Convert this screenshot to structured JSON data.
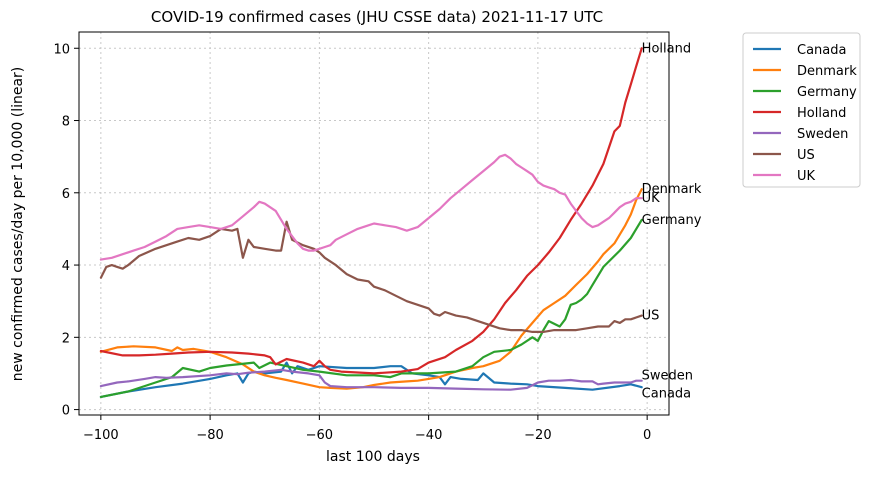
{
  "chart_data": {
    "type": "line",
    "title": "COVID-19 confirmed cases (JHU CSSE data) 2021-11-17 UTC",
    "xlabel": "last 100 days",
    "ylabel": "new confirmed cases/day per 10,000 (linear)",
    "xlim": [
      -104,
      4
    ],
    "ylim": [
      -0.15,
      10.45
    ],
    "xticks": [
      -100,
      -80,
      -60,
      -40,
      -20,
      0
    ],
    "xtick_labels": [
      "−100",
      "−80",
      "−60",
      "−40",
      "−20",
      "0"
    ],
    "yticks": [
      0,
      2,
      4,
      6,
      8,
      10
    ],
    "ytick_labels": [
      "0",
      "2",
      "4",
      "6",
      "8",
      "10"
    ],
    "grid": true,
    "legend_position": "outside-right",
    "series": [
      {
        "name": "Canada",
        "color": "#1f77b4",
        "x": [
          -100,
          -95,
          -90,
          -85,
          -80,
          -77,
          -75,
          -74,
          -73,
          -72,
          -70,
          -67,
          -66,
          -65,
          -64,
          -62,
          -60,
          -55,
          -50,
          -47,
          -45,
          -43,
          -40,
          -38,
          -37,
          -36,
          -34,
          -31,
          -30,
          -28,
          -25,
          -22,
          -20,
          -15,
          -10,
          -5,
          -3,
          -1
        ],
        "y": [
          0.35,
          0.5,
          0.62,
          0.72,
          0.85,
          0.95,
          1.0,
          0.75,
          1.0,
          1.05,
          1.0,
          1.05,
          1.3,
          1.0,
          1.2,
          1.1,
          1.2,
          1.15,
          1.15,
          1.2,
          1.2,
          1.0,
          0.95,
          0.9,
          0.7,
          0.9,
          0.85,
          0.82,
          1.0,
          0.75,
          0.72,
          0.7,
          0.65,
          0.6,
          0.55,
          0.65,
          0.7,
          0.62
        ]
      },
      {
        "name": "Denmark",
        "color": "#ff7f0e",
        "x": [
          -100,
          -97,
          -94,
          -90,
          -87,
          -86,
          -85,
          -83,
          -80,
          -77,
          -74,
          -72,
          -70,
          -68,
          -66,
          -63,
          -60,
          -58,
          -55,
          -52,
          -50,
          -47,
          -44,
          -42,
          -40,
          -38,
          -35,
          -32,
          -30,
          -27,
          -25,
          -23,
          -21,
          -19,
          -17,
          -15,
          -13,
          -11,
          -9,
          -8,
          -6,
          -4,
          -3,
          -2,
          -1
        ],
        "y": [
          1.6,
          1.72,
          1.75,
          1.72,
          1.62,
          1.72,
          1.65,
          1.68,
          1.6,
          1.45,
          1.25,
          1.05,
          0.95,
          0.88,
          0.82,
          0.72,
          0.62,
          0.6,
          0.58,
          0.62,
          0.68,
          0.75,
          0.78,
          0.8,
          0.85,
          0.9,
          1.05,
          1.15,
          1.2,
          1.35,
          1.6,
          2.05,
          2.4,
          2.75,
          2.95,
          3.15,
          3.45,
          3.75,
          4.1,
          4.3,
          4.6,
          5.1,
          5.4,
          5.8,
          6.1
        ]
      },
      {
        "name": "Germany",
        "color": "#2ca02c",
        "x": [
          -100,
          -95,
          -90,
          -87,
          -85,
          -82,
          -80,
          -77,
          -75,
          -72,
          -71,
          -69,
          -66,
          -63,
          -60,
          -55,
          -50,
          -47,
          -45,
          -40,
          -35,
          -32,
          -30,
          -28,
          -25,
          -23,
          -21,
          -20,
          -19,
          -18,
          -16,
          -15,
          -14,
          -13,
          -12,
          -11,
          -10,
          -8,
          -5,
          -3,
          -1
        ],
        "y": [
          0.35,
          0.5,
          0.75,
          0.9,
          1.15,
          1.05,
          1.15,
          1.22,
          1.25,
          1.3,
          1.15,
          1.3,
          1.2,
          1.1,
          1.05,
          0.95,
          0.95,
          0.9,
          1.0,
          1.0,
          1.05,
          1.2,
          1.45,
          1.6,
          1.65,
          1.8,
          2.0,
          1.9,
          2.2,
          2.45,
          2.3,
          2.5,
          2.9,
          2.95,
          3.05,
          3.2,
          3.45,
          3.95,
          4.4,
          4.75,
          5.25
        ]
      },
      {
        "name": "Holland",
        "color": "#d62728",
        "x": [
          -100,
          -96,
          -93,
          -90,
          -87,
          -84,
          -80,
          -76,
          -73,
          -70,
          -69,
          -68,
          -66,
          -63,
          -61,
          -60,
          -59,
          -58,
          -56,
          -50,
          -45,
          -42,
          -40,
          -37,
          -35,
          -32,
          -30,
          -28,
          -26,
          -24,
          -22,
          -20,
          -18,
          -16,
          -14,
          -12,
          -10,
          -8,
          -6,
          -5,
          -4,
          -3,
          -2,
          -1
        ],
        "y": [
          1.62,
          1.5,
          1.5,
          1.52,
          1.55,
          1.58,
          1.6,
          1.58,
          1.55,
          1.5,
          1.45,
          1.25,
          1.4,
          1.3,
          1.2,
          1.35,
          1.2,
          1.1,
          1.05,
          1.0,
          1.05,
          1.12,
          1.3,
          1.45,
          1.65,
          1.9,
          2.15,
          2.5,
          2.95,
          3.3,
          3.7,
          4.0,
          4.35,
          4.75,
          5.25,
          5.7,
          6.2,
          6.8,
          7.7,
          7.85,
          8.5,
          9.0,
          9.5,
          10.0
        ]
      },
      {
        "name": "Sweden",
        "color": "#9467bd",
        "x": [
          -100,
          -97,
          -95,
          -92,
          -90,
          -88,
          -85,
          -80,
          -77,
          -75,
          -73,
          -70,
          -67,
          -65,
          -62,
          -60,
          -59,
          -58,
          -55,
          -50,
          -45,
          -40,
          -35,
          -30,
          -25,
          -22,
          -20,
          -18,
          -16,
          -14,
          -12,
          -10,
          -9,
          -8,
          -6,
          -3,
          -2,
          -1
        ],
        "y": [
          0.65,
          0.75,
          0.78,
          0.85,
          0.9,
          0.88,
          0.9,
          0.95,
          1.0,
          0.98,
          1.02,
          1.05,
          1.1,
          1.05,
          1.0,
          0.95,
          0.75,
          0.65,
          0.62,
          0.62,
          0.6,
          0.6,
          0.58,
          0.56,
          0.55,
          0.6,
          0.75,
          0.8,
          0.8,
          0.82,
          0.78,
          0.78,
          0.7,
          0.72,
          0.75,
          0.75,
          0.8,
          0.8
        ]
      },
      {
        "name": "US",
        "color": "#8c564b",
        "x": [
          -100,
          -99,
          -98,
          -97,
          -96,
          -95,
          -93,
          -90,
          -88,
          -86,
          -84,
          -82,
          -80,
          -78,
          -76,
          -75,
          -74,
          -73,
          -72,
          -70,
          -68,
          -67,
          -66,
          -65,
          -63,
          -61,
          -60,
          -59,
          -57,
          -55,
          -53,
          -51,
          -50,
          -48,
          -46,
          -44,
          -42,
          -40,
          -39,
          -38,
          -37,
          -35,
          -33,
          -31,
          -29,
          -27,
          -25,
          -23,
          -21,
          -19,
          -17,
          -15,
          -13,
          -11,
          -9,
          -7,
          -6,
          -5,
          -4,
          -3,
          -1
        ],
        "y": [
          3.65,
          3.95,
          4.0,
          3.95,
          3.9,
          4.0,
          4.25,
          4.45,
          4.55,
          4.65,
          4.75,
          4.7,
          4.8,
          5.0,
          4.95,
          5.0,
          4.2,
          4.7,
          4.5,
          4.45,
          4.4,
          4.4,
          5.2,
          4.7,
          4.55,
          4.45,
          4.35,
          4.2,
          4.0,
          3.75,
          3.6,
          3.55,
          3.4,
          3.3,
          3.15,
          3.0,
          2.9,
          2.8,
          2.65,
          2.6,
          2.7,
          2.6,
          2.55,
          2.45,
          2.35,
          2.25,
          2.2,
          2.2,
          2.15,
          2.15,
          2.2,
          2.2,
          2.2,
          2.25,
          2.3,
          2.3,
          2.45,
          2.4,
          2.5,
          2.5,
          2.6
        ]
      },
      {
        "name": "UK",
        "color": "#e377c2",
        "x": [
          -100,
          -98,
          -96,
          -94,
          -92,
          -90,
          -88,
          -86,
          -84,
          -82,
          -80,
          -78,
          -76,
          -74,
          -72,
          -71,
          -70,
          -68,
          -66,
          -64,
          -63,
          -62,
          -61,
          -60,
          -59,
          -58,
          -57,
          -55,
          -53,
          -51,
          -50,
          -48,
          -46,
          -44,
          -42,
          -40,
          -38,
          -36,
          -34,
          -32,
          -30,
          -28,
          -27,
          -26,
          -25,
          -24,
          -23,
          -22,
          -21,
          -20,
          -19,
          -18,
          -17,
          -16,
          -15,
          -14,
          -13,
          -12,
          -11,
          -10,
          -9,
          -8,
          -7,
          -6,
          -5,
          -4,
          -3,
          -2,
          -1
        ],
        "y": [
          4.15,
          4.2,
          4.3,
          4.4,
          4.5,
          4.65,
          4.8,
          5.0,
          5.05,
          5.1,
          5.05,
          5.0,
          5.1,
          5.35,
          5.6,
          5.75,
          5.7,
          5.5,
          5.0,
          4.6,
          4.45,
          4.4,
          4.4,
          4.45,
          4.5,
          4.55,
          4.7,
          4.85,
          5.0,
          5.1,
          5.15,
          5.1,
          5.05,
          4.95,
          5.05,
          5.3,
          5.55,
          5.85,
          6.1,
          6.35,
          6.6,
          6.85,
          7.0,
          7.05,
          6.95,
          6.8,
          6.7,
          6.6,
          6.5,
          6.3,
          6.2,
          6.15,
          6.1,
          6.0,
          5.95,
          5.7,
          5.5,
          5.3,
          5.15,
          5.05,
          5.1,
          5.2,
          5.3,
          5.45,
          5.6,
          5.7,
          5.75,
          5.85,
          5.85
        ]
      }
    ],
    "end_labels": [
      {
        "text": "Holland",
        "y": 10.0
      },
      {
        "text": "Denmark",
        "y": 6.1
      },
      {
        "text": "UK",
        "y": 5.85
      },
      {
        "text": "Germany",
        "y": 5.25
      },
      {
        "text": "US",
        "y": 2.6
      },
      {
        "text": "Sweden",
        "y": 0.95
      },
      {
        "text": "Canada",
        "y": 0.45
      }
    ]
  }
}
